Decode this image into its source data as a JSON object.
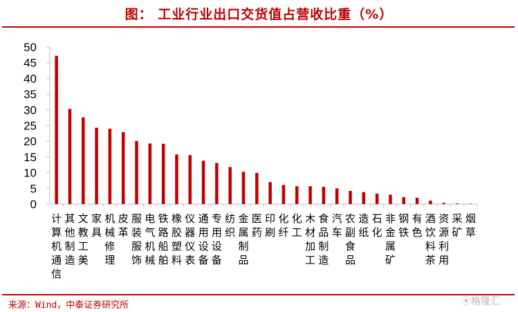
{
  "title": "图：  工业行业出口交货值占营收比重（%）",
  "source": "来源：Wind，中泰证券研究所",
  "watermark": "⦿格隆汇",
  "colors": {
    "accent": "#c00000",
    "bar": "#c00000",
    "axis": "#bfbfbf",
    "text": "#000000"
  },
  "chart_data": {
    "type": "bar",
    "title": "工业行业出口交货值占营收比重（%）",
    "ylim": [
      0,
      50
    ],
    "yticks": [
      0,
      5,
      10,
      15,
      20,
      25,
      30,
      35,
      40,
      45,
      50
    ],
    "grid": false,
    "categories": [
      "计算机通信",
      "其他制造",
      "文教工美",
      "家具",
      "机械修理",
      "皮革",
      "服装服饰",
      "电气机械",
      "铁路船舶",
      "橡胶塑料",
      "仪器仪表",
      "通用设备",
      "专用设备",
      "纺织",
      "金属制品",
      "医药",
      "印刷",
      "化纤",
      "化工",
      "木材加工",
      "食品制造",
      "汽车",
      "农副食品",
      "造纸",
      "石化",
      "非金属矿",
      "钢铁",
      "有色",
      "酒饮料茶",
      "资源利用",
      "采矿",
      "烟草"
    ],
    "category_label_lines": [
      [
        "计",
        "算",
        "机",
        "通",
        "信"
      ],
      [
        "其",
        "他",
        "制",
        "造"
      ],
      [
        "文",
        "教",
        "工",
        "美"
      ],
      [
        "家",
        "具"
      ],
      [
        "机",
        "械",
        "修",
        "理"
      ],
      [
        "皮",
        "革"
      ],
      [
        "服",
        "装",
        "服",
        "饰"
      ],
      [
        "电",
        "气",
        "机",
        "械"
      ],
      [
        "铁",
        "路",
        "船",
        "舶"
      ],
      [
        "橡",
        "胶",
        "塑",
        "料"
      ],
      [
        "仪",
        "器",
        "仪",
        "表"
      ],
      [
        "通",
        "用",
        "设",
        "备"
      ],
      [
        "专",
        "用",
        "设",
        "备"
      ],
      [
        "纺",
        "织"
      ],
      [
        "金",
        "属",
        "制",
        "品"
      ],
      [
        "医",
        "药"
      ],
      [
        "印",
        "刷"
      ],
      [
        "化",
        "纤"
      ],
      [
        "化",
        "工"
      ],
      [
        "木",
        "材",
        "加",
        "工"
      ],
      [
        "食",
        "品",
        "制",
        "造"
      ],
      [
        "汽",
        "车"
      ],
      [
        "农",
        "副",
        "食",
        "品"
      ],
      [
        "造",
        "纸"
      ],
      [
        "石",
        "化"
      ],
      [
        "非",
        "金",
        "属",
        "矿"
      ],
      [
        "钢",
        "铁"
      ],
      [
        "有",
        "色"
      ],
      [
        "酒",
        "饮",
        "料",
        "茶"
      ],
      [
        "资",
        "源",
        "利",
        "用"
      ],
      [
        "采",
        "矿"
      ],
      [
        "烟",
        "草"
      ]
    ],
    "values": [
      47.2,
      30.3,
      27.6,
      24.3,
      24.0,
      22.9,
      20.1,
      19.3,
      19.2,
      15.8,
      15.6,
      13.8,
      13.1,
      11.8,
      10.3,
      9.9,
      7.0,
      6.1,
      5.7,
      5.7,
      5.5,
      5.0,
      4.2,
      3.8,
      3.3,
      3.0,
      2.2,
      2.0,
      1.1,
      0.4,
      0.2,
      0.1
    ]
  }
}
